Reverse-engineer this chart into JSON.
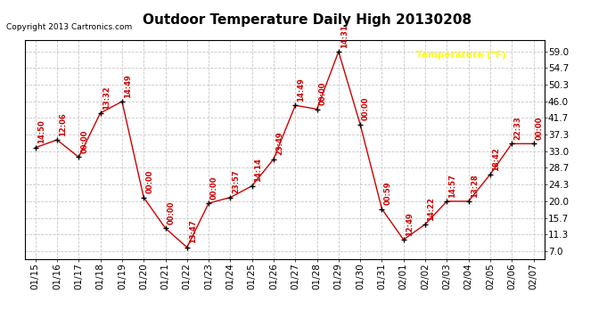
{
  "title": "Outdoor Temperature Daily High 20130208",
  "copyright": "Copyright 2013 Cartronics.com",
  "legend_label": "Temperature (°F)",
  "dates": [
    "01/15",
    "01/16",
    "01/17",
    "01/18",
    "01/19",
    "01/20",
    "01/21",
    "01/22",
    "01/23",
    "01/24",
    "01/25",
    "01/26",
    "01/27",
    "01/28",
    "01/29",
    "01/30",
    "01/31",
    "02/01",
    "02/02",
    "02/03",
    "02/04",
    "02/05",
    "02/06",
    "02/07"
  ],
  "temps": [
    34.0,
    36.0,
    31.5,
    43.0,
    46.0,
    21.0,
    13.0,
    8.0,
    19.5,
    21.0,
    24.0,
    31.0,
    45.0,
    44.0,
    59.0,
    40.0,
    18.0,
    10.0,
    14.0,
    20.0,
    20.0,
    27.0,
    35.0,
    35.0
  ],
  "time_labels": [
    "14:50",
    "12:06",
    "00:00",
    "13:32",
    "14:49",
    "00:00",
    "00:00",
    "13:47",
    "00:00",
    "23:57",
    "14:14",
    "23:49",
    "14:49",
    "00:00",
    "14:31",
    "00:00",
    "00:59",
    "12:49",
    "14:22",
    "14:57",
    "13:28",
    "18:42",
    "22:33",
    "00:00"
  ],
  "ytick_vals": [
    7.0,
    11.3,
    15.7,
    20.0,
    24.3,
    28.7,
    33.0,
    37.3,
    41.7,
    46.0,
    50.3,
    54.7,
    59.0
  ],
  "ytick_labels": [
    "7.0",
    "11.3",
    "15.7",
    "20.0",
    "24.3",
    "28.7",
    "33.0",
    "37.3",
    "41.7",
    "46.0",
    "50.3",
    "54.7",
    "59.0"
  ],
  "ymin": 5.0,
  "ymax": 62.0,
  "line_color": "#cc0000",
  "marker_color": "#000000",
  "bg_color": "#ffffff",
  "grid_color": "#c8c8c8",
  "title_fontsize": 11,
  "tick_fontsize": 7.5,
  "annot_fontsize": 6.0,
  "legend_bg": "#cc0000",
  "legend_text_color": "#ffff00",
  "legend_fontsize": 7.5
}
